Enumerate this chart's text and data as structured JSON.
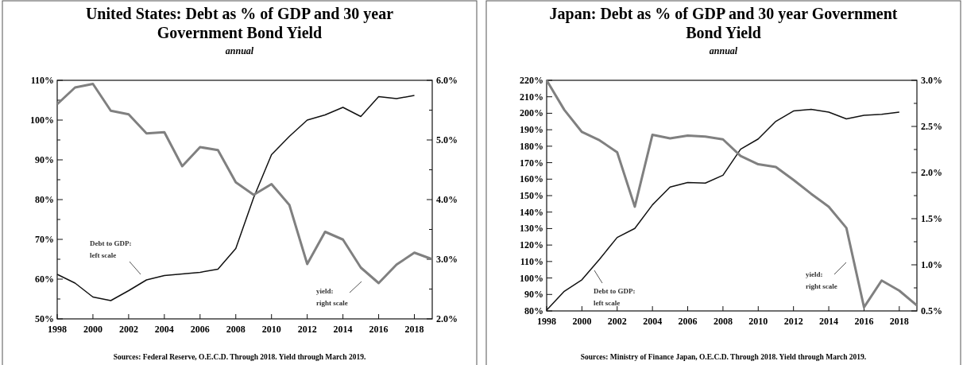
{
  "chart_data": [
    {
      "type": "line",
      "title": "United States: Debt as % of GDP and 30 year Government Bond Yield",
      "subtitle": "annual",
      "xlim": [
        1998,
        2019
      ],
      "xticks": [
        1998,
        2000,
        2002,
        2004,
        2006,
        2008,
        2010,
        2012,
        2014,
        2016,
        2018
      ],
      "ylim": [
        50,
        110
      ],
      "yticks": [
        {
          "value": 50,
          "label": "50%"
        },
        {
          "value": 55,
          "label": null
        },
        {
          "value": 60,
          "label": "60%"
        },
        {
          "value": 65,
          "label": null
        },
        {
          "value": 70,
          "label": "70%"
        },
        {
          "value": 75,
          "label": null
        },
        {
          "value": 80,
          "label": "80%"
        },
        {
          "value": 85,
          "label": null
        },
        {
          "value": 90,
          "label": "90%"
        },
        {
          "value": 95,
          "label": null
        },
        {
          "value": 100,
          "label": "100%"
        },
        {
          "value": 105,
          "label": null
        },
        {
          "value": 110,
          "label": "110%"
        }
      ],
      "y2lim": [
        2,
        6
      ],
      "y2ticks": [
        {
          "value": 2,
          "label": "2.0%"
        },
        {
          "value": 2.5,
          "label": null
        },
        {
          "value": 3,
          "label": "3.0%"
        },
        {
          "value": 3.5,
          "label": null
        },
        {
          "value": 4,
          "label": "4.0%"
        },
        {
          "value": 4.5,
          "label": null
        },
        {
          "value": 5,
          "label": "5.0%"
        },
        {
          "value": 5.5,
          "label": null
        },
        {
          "value": 6,
          "label": "6.0%"
        }
      ],
      "series": [
        {
          "color": "#111111",
          "x": [
            1998,
            1999,
            2000,
            2001,
            2002,
            2003,
            2004,
            2005,
            2006,
            2007,
            2008,
            2009,
            2010,
            2011,
            2012,
            2013,
            2014,
            2015,
            2016,
            2017,
            2018
          ],
          "values": [
            61.2,
            59.0,
            55.5,
            54.6,
            57.1,
            59.8,
            60.9,
            61.3,
            61.7,
            62.5,
            67.7,
            80.5,
            91.3,
            95.9,
            100,
            101.3,
            103.2,
            100.9,
            105.9,
            105.4,
            106.2
          ]
        },
        {
          "color": "#808080",
          "axis": "y2",
          "x": [
            1998,
            1999,
            2000,
            2001,
            2002,
            2003,
            2004,
            2005,
            2006,
            2007,
            2008,
            2009,
            2010,
            2011,
            2012,
            2013,
            2014,
            2015,
            2016,
            2017,
            2018,
            2019
          ],
          "values": [
            5.6,
            5.88,
            5.94,
            5.49,
            5.43,
            5.11,
            5.13,
            4.56,
            4.88,
            4.83,
            4.29,
            4.08,
            4.26,
            3.91,
            2.92,
            3.46,
            3.33,
            2.86,
            2.6,
            2.91,
            3.11,
            3.0
          ]
        }
      ],
      "annotations": [
        "Debt to GDP: left scale",
        "yield: right scale",
        "Sources: Federal Reserve, O.E.C.D. Through 2018. Yield through March 2019."
      ]
    },
    {
      "type": "line",
      "title": "Japan: Debt as % of GDP and 30 year Government Bond Yield",
      "subtitle": "annual",
      "xlim": [
        1998,
        2019
      ],
      "xticks": [
        1998,
        2000,
        2002,
        2004,
        2006,
        2008,
        2010,
        2012,
        2014,
        2016,
        2018
      ],
      "ylim": [
        80,
        220
      ],
      "yticks": [
        {
          "value": 80,
          "label": "80%"
        },
        {
          "value": 90,
          "label": "90%"
        },
        {
          "value": 100,
          "label": "100%"
        },
        {
          "value": 110,
          "label": "110%"
        },
        {
          "value": 120,
          "label": "120%"
        },
        {
          "value": 130,
          "label": "130%"
        },
        {
          "value": 140,
          "label": "140%"
        },
        {
          "value": 150,
          "label": "150%"
        },
        {
          "value": 160,
          "label": "160%"
        },
        {
          "value": 170,
          "label": "170%"
        },
        {
          "value": 180,
          "label": "180%"
        },
        {
          "value": 190,
          "label": "190%"
        },
        {
          "value": 200,
          "label": "200%"
        },
        {
          "value": 210,
          "label": "210%"
        },
        {
          "value": 220,
          "label": "220%"
        }
      ],
      "y2lim": [
        0.5,
        3
      ],
      "y2ticks": [
        {
          "value": 0.5,
          "label": "0.5%"
        },
        {
          "value": 0.75,
          "label": null
        },
        {
          "value": 1,
          "label": "1.0%"
        },
        {
          "value": 1.25,
          "label": null
        },
        {
          "value": 1.5,
          "label": "1.5%"
        },
        {
          "value": 1.75,
          "label": null
        },
        {
          "value": 2,
          "label": "2.0%"
        },
        {
          "value": 2.25,
          "label": null
        },
        {
          "value": 2.5,
          "label": "2.5%"
        },
        {
          "value": 2.75,
          "label": null
        },
        {
          "value": 3,
          "label": "3.0%"
        }
      ],
      "series": [
        {
          "color": "#111111",
          "x": [
            1998,
            1999,
            2000,
            2001,
            2002,
            2003,
            2004,
            2005,
            2006,
            2007,
            2008,
            2009,
            2010,
            2011,
            2012,
            2013,
            2014,
            2015,
            2016,
            2017,
            2018
          ],
          "values": [
            80.5,
            91.9,
            98.9,
            111.4,
            124.6,
            130.1,
            144.4,
            155.2,
            158.0,
            157.6,
            162.4,
            178.2,
            184.4,
            195.1,
            201.4,
            202.4,
            200.7,
            196.6,
            198.8,
            199.4,
            200.7
          ]
        },
        {
          "color": "#808080",
          "axis": "y2",
          "x": [
            1998,
            1999,
            2000,
            2001,
            2002,
            2003,
            2004,
            2005,
            2006,
            2007,
            2008,
            2009,
            2010,
            2011,
            2012,
            2013,
            2014,
            2015,
            2016,
            2017,
            2018,
            2019
          ],
          "values": [
            3.0,
            2.68,
            2.44,
            2.35,
            2.22,
            1.63,
            2.41,
            2.37,
            2.4,
            2.39,
            2.36,
            2.18,
            2.09,
            2.06,
            1.92,
            1.77,
            1.63,
            1.4,
            0.54,
            0.83,
            0.72,
            0.56
          ]
        }
      ],
      "annotations": [
        "Debt to GDP: left scale",
        "yield: right scale",
        "Sources: Ministry of Finance Japan, O.E.C.D. Through 2018. Yield through March 2019."
      ]
    }
  ]
}
